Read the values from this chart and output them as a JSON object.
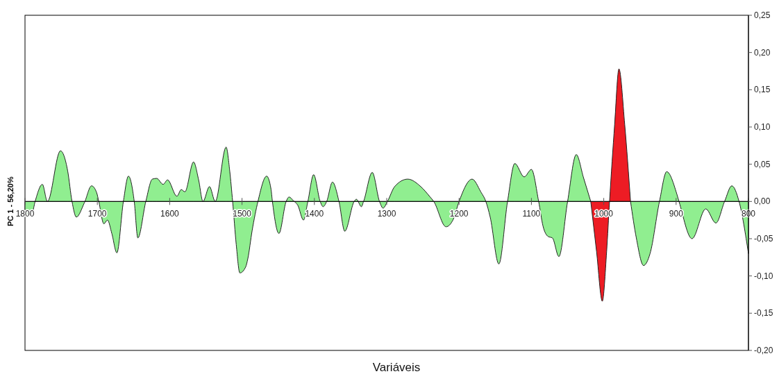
{
  "chart_data": {
    "type": "area",
    "xlabel": "Variáveis",
    "ylabel": "PC 1 - 56,20%",
    "xlim": [
      1800,
      800
    ],
    "xticks": [
      1800,
      1700,
      1600,
      1500,
      1400,
      1300,
      1200,
      1100,
      1000,
      900,
      800
    ],
    "ylim": [
      -0.2,
      0.25
    ],
    "yticks": [
      {
        "value": -0.2,
        "label": "-0,20"
      },
      {
        "value": -0.15,
        "label": "-0,15"
      },
      {
        "value": -0.1,
        "label": "-0,10"
      },
      {
        "value": -0.05,
        "label": "-0,05"
      },
      {
        "value": 0,
        "label": "0,00"
      },
      {
        "value": 0.05,
        "label": "0,05"
      },
      {
        "value": 0.1,
        "label": "0,10"
      },
      {
        "value": 0.15,
        "label": "0,15"
      },
      {
        "value": 0.2,
        "label": "0,20"
      },
      {
        "value": 0.25,
        "label": "0,25"
      }
    ],
    "series": [
      {
        "color": "#90ee90",
        "x": [
          1800,
          1790,
          1786,
          1776,
          1769,
          1751,
          1741,
          1735,
          1729,
          1718,
          1708,
          1701,
          1698,
          1691,
          1686,
          1680,
          1673,
          1664,
          1657,
          1649,
          1644,
          1633,
          1624,
          1618,
          1609,
          1603,
          1590,
          1584,
          1579,
          1567,
          1560,
          1554,
          1545,
          1537,
          1522,
          1517,
          1513,
          1508,
          1503,
          1495,
          1492,
          1486,
          1478,
          1466,
          1460,
          1458,
          1449,
          1439,
          1435,
          1429,
          1423,
          1415,
          1409,
          1401,
          1392,
          1388,
          1383,
          1375,
          1366,
          1358,
          1345,
          1342,
          1335,
          1332,
          1320,
          1310,
          1305,
          1299,
          1289,
          1271,
          1253,
          1240,
          1235,
          1218,
          1208,
          1200,
          1182,
          1170,
          1163,
          1157,
          1145,
          1133,
          1123,
          1110,
          1100,
          1090,
          1084,
          1077,
          1071,
          1062,
          1050,
          1038,
          1028,
          1018,
          1000,
          963,
          955,
          945,
          936,
          923,
          913,
          899,
          896,
          878,
          859,
          845,
          833,
          823,
          813,
          800
        ],
        "values": [
          -0.019,
          -0.015,
          0,
          0.023,
          0,
          0.068,
          0.041,
          0,
          -0.021,
          -0.002,
          0.021,
          0.012,
          0,
          -0.03,
          -0.025,
          -0.043,
          -0.069,
          0,
          0.034,
          0,
          -0.049,
          0,
          0.03,
          0.031,
          0.023,
          0.029,
          0.007,
          0.016,
          0.013,
          0.053,
          0.029,
          0,
          0.02,
          0,
          0.073,
          0.041,
          0,
          -0.058,
          -0.096,
          -0.088,
          -0.077,
          -0.039,
          0,
          0.034,
          0.017,
          0,
          -0.043,
          0,
          0.006,
          0.001,
          -0.005,
          -0.025,
          0,
          0.036,
          0,
          -0.007,
          0,
          0.026,
          0,
          -0.04,
          0,
          0.003,
          -0.007,
          0,
          0.039,
          0,
          -0.009,
          0,
          0.02,
          0.03,
          0.02,
          0.006,
          0,
          -0.034,
          -0.024,
          0,
          0.03,
          0.013,
          0,
          -0.021,
          -0.084,
          0,
          0.051,
          0.033,
          0.043,
          0,
          -0.033,
          -0.047,
          -0.049,
          -0.074,
          0,
          0.063,
          0.032,
          0,
          null,
          0,
          -0.049,
          -0.086,
          -0.07,
          0,
          0.04,
          0.01,
          0,
          -0.05,
          -0.01,
          -0.029,
          0,
          0.021,
          0,
          -0.07
        ]
      },
      {
        "color": "#ed1c24",
        "x": [
          1018,
          1010,
          1002,
          996,
          992,
          985,
          979,
          971,
          963
        ],
        "values": [
          0,
          -0.067,
          -0.134,
          -0.067,
          0,
          0.103,
          0.178,
          0.103,
          0
        ]
      }
    ]
  }
}
